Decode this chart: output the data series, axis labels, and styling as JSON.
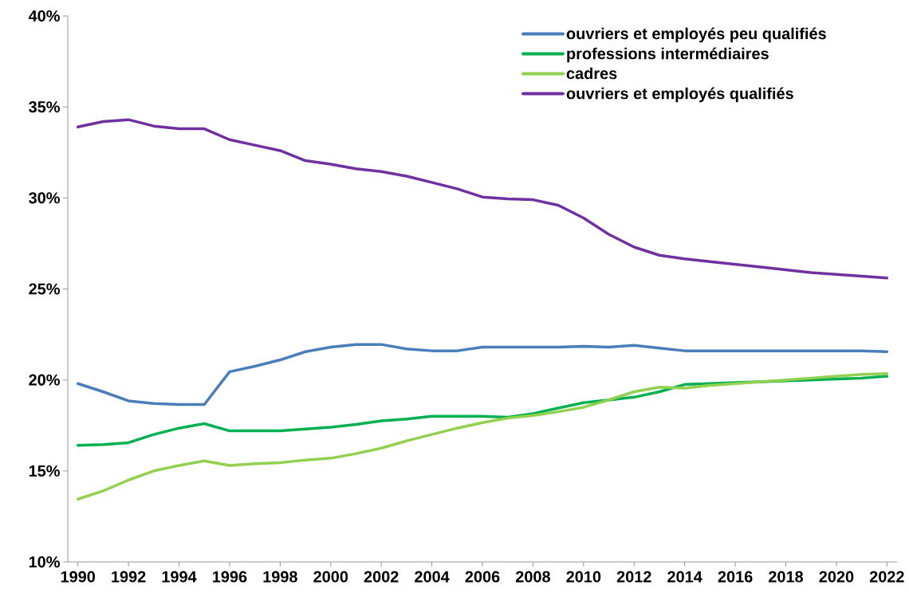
{
  "chart_data": {
    "type": "line",
    "x": [
      1990,
      1991,
      1992,
      1993,
      1994,
      1995,
      1996,
      1997,
      1998,
      1999,
      2000,
      2001,
      2002,
      2003,
      2004,
      2005,
      2006,
      2007,
      2008,
      2009,
      2010,
      2011,
      2012,
      2013,
      2014,
      2015,
      2016,
      2017,
      2018,
      2019,
      2020,
      2021,
      2022
    ],
    "series": [
      {
        "name": "ouvriers et employés peu qualifiés",
        "color": "#4a7ebb",
        "values": [
          19.8,
          19.35,
          18.85,
          18.7,
          18.65,
          18.65,
          20.45,
          20.75,
          21.1,
          21.55,
          21.8,
          21.95,
          21.95,
          21.7,
          21.6,
          21.6,
          21.8,
          21.8,
          21.8,
          21.8,
          21.85,
          21.8,
          21.9,
          21.75,
          21.6,
          21.6,
          21.6,
          21.6,
          21.6,
          21.6,
          21.6,
          21.6,
          21.55
        ]
      },
      {
        "name": "professions intermédiaires",
        "color": "#00b050",
        "values": [
          16.4,
          16.45,
          16.55,
          17.0,
          17.35,
          17.6,
          17.2,
          17.2,
          17.2,
          17.3,
          17.4,
          17.55,
          17.75,
          17.85,
          18.0,
          18.0,
          18.0,
          17.95,
          18.15,
          18.45,
          18.75,
          18.9,
          19.05,
          19.35,
          19.75,
          19.8,
          19.85,
          19.9,
          19.95,
          20.0,
          20.05,
          20.1,
          20.2
        ]
      },
      {
        "name": "cadres",
        "color": "#92d050",
        "values": [
          13.45,
          13.9,
          14.5,
          15.0,
          15.3,
          15.55,
          15.3,
          15.4,
          15.45,
          15.6,
          15.7,
          15.95,
          16.25,
          16.65,
          17.0,
          17.35,
          17.65,
          17.9,
          18.05,
          18.25,
          18.5,
          18.9,
          19.35,
          19.6,
          19.55,
          19.7,
          19.8,
          19.9,
          20.0,
          20.1,
          20.2,
          20.3,
          20.35
        ]
      },
      {
        "name": "ouvriers et employés qualifiés",
        "color": "#7030a0",
        "values": [
          33.9,
          34.2,
          34.3,
          33.95,
          33.8,
          33.8,
          33.2,
          32.9,
          32.6,
          32.05,
          31.85,
          31.6,
          31.45,
          31.2,
          30.85,
          30.5,
          30.05,
          29.95,
          29.9,
          29.6,
          28.9,
          28.0,
          27.3,
          26.85,
          26.65,
          26.5,
          26.35,
          26.2,
          26.05,
          25.9,
          25.8,
          25.7,
          25.6
        ]
      }
    ],
    "xlim": [
      1989.6,
      2022.4
    ],
    "xticks": [
      1990,
      1992,
      1994,
      1996,
      1998,
      2000,
      2002,
      2004,
      2006,
      2008,
      2010,
      2012,
      2014,
      2016,
      2018,
      2020,
      2022
    ],
    "ylim": [
      10,
      40
    ],
    "yticks": [
      {
        "value": 10,
        "label": "10%"
      },
      {
        "value": 15,
        "label": "15%"
      },
      {
        "value": 20,
        "label": "20%"
      },
      {
        "value": 25,
        "label": "25%"
      },
      {
        "value": 30,
        "label": "30%"
      },
      {
        "value": 35,
        "label": "35%"
      },
      {
        "value": 40,
        "label": "40%"
      }
    ],
    "grid": false,
    "legend": "top right",
    "marker": "none",
    "line_style": "solid"
  }
}
